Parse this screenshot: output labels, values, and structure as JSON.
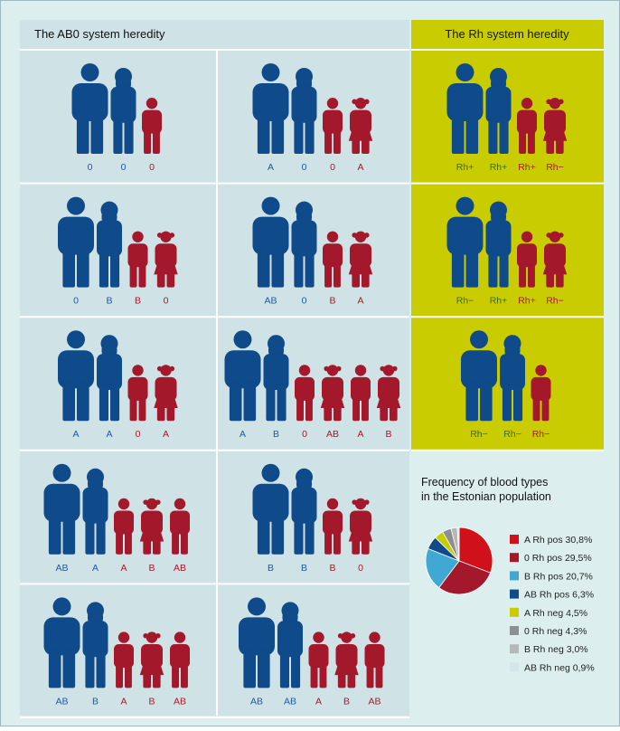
{
  "abo": {
    "title": "The AB0 system heredity",
    "cells": [
      {
        "parents": [
          "0",
          "0"
        ],
        "children": [
          "0"
        ]
      },
      {
        "parents": [
          "A",
          "0"
        ],
        "children": [
          "0",
          "A"
        ]
      },
      {
        "parents": [
          "0",
          "B"
        ],
        "children": [
          "B",
          "0"
        ]
      },
      {
        "parents": [
          "AB",
          "0"
        ],
        "children": [
          "B",
          "A"
        ]
      },
      {
        "parents": [
          "A",
          "A"
        ],
        "children": [
          "0",
          "A"
        ]
      },
      {
        "parents": [
          "A",
          "B"
        ],
        "children": [
          "0",
          "AB",
          "A",
          "B"
        ]
      },
      {
        "parents": [
          "AB",
          "A"
        ],
        "children": [
          "A",
          "B",
          "AB"
        ]
      },
      {
        "parents": [
          "B",
          "B"
        ],
        "children": [
          "B",
          "0"
        ]
      },
      {
        "parents": [
          "AB",
          "B"
        ],
        "children": [
          "A",
          "B",
          "AB"
        ]
      },
      {
        "parents": [
          "AB",
          "AB"
        ],
        "children": [
          "A",
          "B",
          "AB"
        ]
      }
    ]
  },
  "rh": {
    "title": "The Rh system heredity",
    "cells": [
      {
        "parents": [
          "Rh+",
          "Rh+"
        ],
        "children": [
          "Rh+",
          "Rh−"
        ]
      },
      {
        "parents": [
          "Rh−",
          "Rh+"
        ],
        "children": [
          "Rh+",
          "Rh−"
        ]
      },
      {
        "parents": [
          "Rh−",
          "Rh−"
        ],
        "children": [
          "Rh−"
        ]
      }
    ]
  },
  "chart_data": {
    "type": "pie",
    "title": [
      "Frequency of blood types",
      "in the Estonian population"
    ],
    "categories": [
      "A Rh pos",
      "0 Rh pos",
      "B Rh pos",
      "AB Rh pos",
      "A Rh neg",
      "0 Rh neg",
      "B Rh neg",
      "AB Rh neg"
    ],
    "values": [
      30.8,
      29.5,
      20.7,
      6.3,
      4.5,
      4.3,
      3.0,
      0.9
    ],
    "value_labels": [
      "30,8%",
      "29,5%",
      "20,7%",
      "6,3%",
      "4,5%",
      "4,3%",
      "3,0%",
      "0,9%"
    ],
    "colors": [
      "#d0111b",
      "#a3192b",
      "#41a8d4",
      "#0f4a8a",
      "#c9cc00",
      "#8b9091",
      "#b5b8b8",
      "#d6e5e9"
    ]
  }
}
